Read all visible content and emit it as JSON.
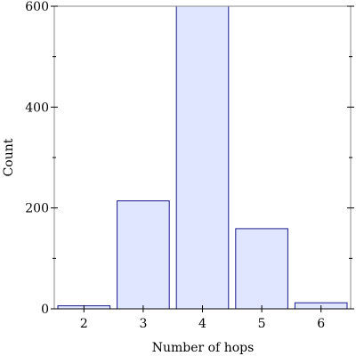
{
  "chart_data": {
    "type": "bar",
    "categories": [
      "2",
      "3",
      "4",
      "5",
      "6"
    ],
    "values": [
      6,
      214,
      601,
      159,
      12
    ],
    "xlabel": "Number of hops",
    "ylabel": "Count",
    "ylim": [
      0,
      600
    ],
    "yticks": [
      "0",
      "200",
      "400",
      "600"
    ],
    "ytick_values": [
      0,
      200,
      400,
      600
    ],
    "yminor_values": [
      100,
      300,
      500
    ],
    "grid": false,
    "colors": {
      "bar_fill": "#e0e6ff",
      "bar_stroke": "#1a1a8c",
      "frame": "#888888"
    }
  }
}
